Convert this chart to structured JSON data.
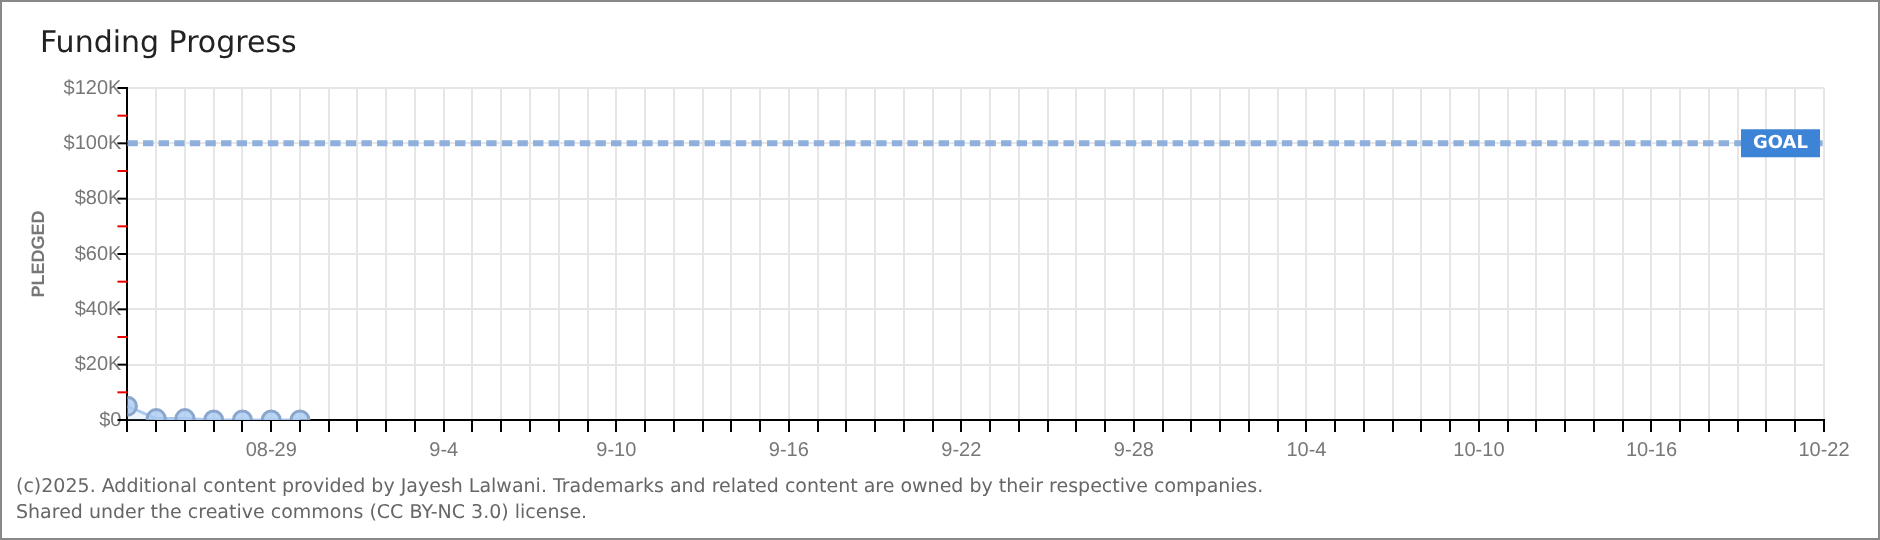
{
  "chart_data": {
    "type": "area",
    "title": "Funding Progress",
    "ylabel": "PLEDGED",
    "x": [
      "2025-08-24",
      "2025-08-25",
      "2025-08-26",
      "2025-08-27",
      "2025-08-28",
      "2025-08-29",
      "2025-08-30"
    ],
    "series": [
      {
        "color": "#a9c9f0",
        "values": [
          5000,
          500,
          500,
          0,
          0,
          0,
          0
        ]
      }
    ],
    "xlim": [
      "2025-08-24",
      "2025-10-22"
    ],
    "xticks": [
      {
        "value": "2025-08-24",
        "label": null
      },
      {
        "value": "2025-08-25",
        "label": null
      },
      {
        "value": "2025-08-26",
        "label": null
      },
      {
        "value": "2025-08-27",
        "label": null
      },
      {
        "value": "2025-08-28",
        "label": null
      },
      {
        "value": "2025-08-29",
        "label": "08-29"
      },
      {
        "value": "2025-08-30",
        "label": null
      },
      {
        "value": "2025-08-31",
        "label": null
      },
      {
        "value": "2025-09-01",
        "label": null
      },
      {
        "value": "2025-09-02",
        "label": null
      },
      {
        "value": "2025-09-03",
        "label": null
      },
      {
        "value": "2025-09-04",
        "label": "9-4"
      },
      {
        "value": "2025-09-05",
        "label": null
      },
      {
        "value": "2025-09-06",
        "label": null
      },
      {
        "value": "2025-09-07",
        "label": null
      },
      {
        "value": "2025-09-08",
        "label": null
      },
      {
        "value": "2025-09-09",
        "label": null
      },
      {
        "value": "2025-09-10",
        "label": "9-10"
      },
      {
        "value": "2025-09-11",
        "label": null
      },
      {
        "value": "2025-09-12",
        "label": null
      },
      {
        "value": "2025-09-13",
        "label": null
      },
      {
        "value": "2025-09-14",
        "label": null
      },
      {
        "value": "2025-09-15",
        "label": null
      },
      {
        "value": "2025-09-16",
        "label": "9-16"
      },
      {
        "value": "2025-09-17",
        "label": null
      },
      {
        "value": "2025-09-18",
        "label": null
      },
      {
        "value": "2025-09-19",
        "label": null
      },
      {
        "value": "2025-09-20",
        "label": null
      },
      {
        "value": "2025-09-21",
        "label": null
      },
      {
        "value": "2025-09-22",
        "label": "9-22"
      },
      {
        "value": "2025-09-23",
        "label": null
      },
      {
        "value": "2025-09-24",
        "label": null
      },
      {
        "value": "2025-09-25",
        "label": null
      },
      {
        "value": "2025-09-26",
        "label": null
      },
      {
        "value": "2025-09-27",
        "label": null
      },
      {
        "value": "2025-09-28",
        "label": "9-28"
      },
      {
        "value": "2025-09-29",
        "label": null
      },
      {
        "value": "2025-09-30",
        "label": null
      },
      {
        "value": "2025-10-01",
        "label": null
      },
      {
        "value": "2025-10-02",
        "label": null
      },
      {
        "value": "2025-10-03",
        "label": null
      },
      {
        "value": "2025-10-04",
        "label": "10-4"
      },
      {
        "value": "2025-10-05",
        "label": null
      },
      {
        "value": "2025-10-06",
        "label": null
      },
      {
        "value": "2025-10-07",
        "label": null
      },
      {
        "value": "2025-10-08",
        "label": null
      },
      {
        "value": "2025-10-09",
        "label": null
      },
      {
        "value": "2025-10-10",
        "label": "10-10"
      },
      {
        "value": "2025-10-11",
        "label": null
      },
      {
        "value": "2025-10-12",
        "label": null
      },
      {
        "value": "2025-10-13",
        "label": null
      },
      {
        "value": "2025-10-14",
        "label": null
      },
      {
        "value": "2025-10-15",
        "label": null
      },
      {
        "value": "2025-10-16",
        "label": "10-16"
      },
      {
        "value": "2025-10-17",
        "label": null
      },
      {
        "value": "2025-10-18",
        "label": null
      },
      {
        "value": "2025-10-19",
        "label": null
      },
      {
        "value": "2025-10-20",
        "label": null
      },
      {
        "value": "2025-10-21",
        "label": null
      },
      {
        "value": "2025-10-22",
        "label": "10-22"
      }
    ],
    "ylim": [
      0,
      120000
    ],
    "yticks": [
      {
        "value": 0,
        "label": "$0"
      },
      {
        "value": 10000,
        "label": null
      },
      {
        "value": 20000,
        "label": "$20K"
      },
      {
        "value": 30000,
        "label": null
      },
      {
        "value": 40000,
        "label": "$40K"
      },
      {
        "value": 50000,
        "label": null
      },
      {
        "value": 60000,
        "label": "$60K"
      },
      {
        "value": 70000,
        "label": null
      },
      {
        "value": 80000,
        "label": "$80K"
      },
      {
        "value": 90000,
        "label": null
      },
      {
        "value": 100000,
        "label": "$100K"
      },
      {
        "value": 110000,
        "label": null
      },
      {
        "value": 120000,
        "label": "$120K"
      }
    ],
    "ref_lines": [
      {
        "axis": "y",
        "value": 100000,
        "label": "GOAL",
        "color": "#8fb0dc",
        "line_style": "dashed"
      }
    ],
    "grid": true,
    "legend": false,
    "marker": "circle",
    "line_style": "solid",
    "annotations": [
      "(c)2025. Additional content provided by Jayesh Lalwani. Trademarks and related content are owned by their respective companies.",
      "Shared under the creative commons (CC BY-NC 3.0) license."
    ]
  }
}
